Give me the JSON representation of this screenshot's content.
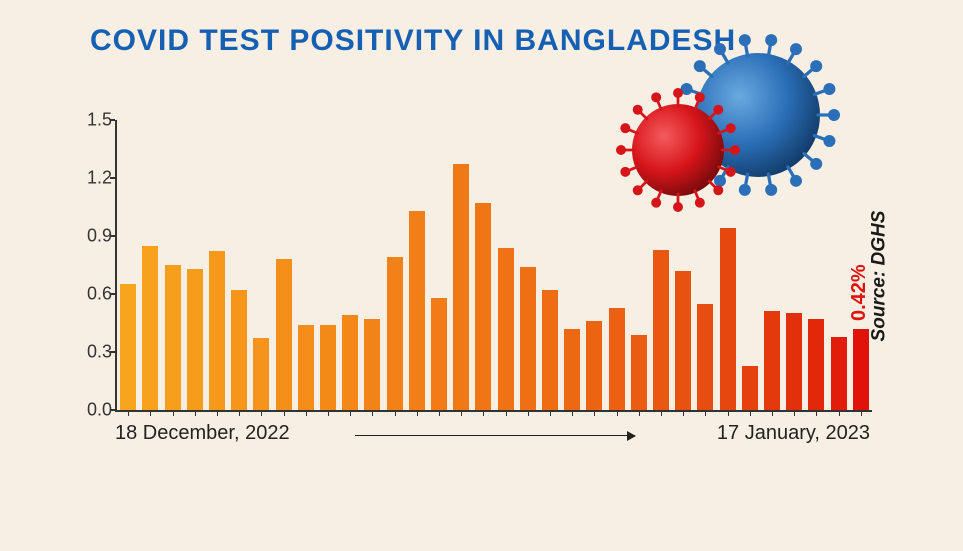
{
  "title": {
    "text": "COVID TEST POSITIVITY IN BANGLADESH",
    "color": "#1560b3",
    "fontsize": 30
  },
  "source": {
    "text": "Source: DGHS",
    "fontsize": 19
  },
  "chart": {
    "type": "bar",
    "ylim": [
      0.0,
      1.5
    ],
    "yticks": [
      0.0,
      0.3,
      0.6,
      0.9,
      1.2,
      1.5
    ],
    "ytick_labels": [
      "0.0",
      "0.3",
      "0.6",
      "0.9",
      "1.2",
      "1.5"
    ],
    "ytick_fontsize": 18,
    "values": [
      0.65,
      0.85,
      0.75,
      0.73,
      0.82,
      0.62,
      0.37,
      0.78,
      0.44,
      0.44,
      0.49,
      0.47,
      0.79,
      1.03,
      0.58,
      1.27,
      1.07,
      0.84,
      0.74,
      0.62,
      0.42,
      0.46,
      0.53,
      0.39,
      0.83,
      0.72,
      0.55,
      0.94,
      0.23,
      0.51,
      0.5,
      0.47,
      0.38,
      0.42
    ],
    "bar_colors": [
      "#f7a41e",
      "#f7a21d",
      "#f79f1c",
      "#f69c1b",
      "#f6991b",
      "#f5961a",
      "#f5931a",
      "#f49019",
      "#f48d19",
      "#f38a18",
      "#f38718",
      "#f28417",
      "#f28117",
      "#f17e16",
      "#f17b16",
      "#f07815",
      "#f07515",
      "#ef7214",
      "#ee6f14",
      "#ee6c13",
      "#ed6813",
      "#ec6412",
      "#eb6012",
      "#ea5c11",
      "#e95711",
      "#e85210",
      "#e74d10",
      "#e6470f",
      "#e5400e",
      "#e4380d",
      "#e3300c",
      "#e2270b",
      "#e11d0a",
      "#e0120a"
    ],
    "bar_width_ratio": 0.72,
    "callout": {
      "text": "0.42%",
      "color": "#e0120a",
      "fontsize": 20
    },
    "x_start_label": "18 December, 2022",
    "x_end_label": "17 January, 2023",
    "xlabel_fontsize": 20,
    "background_color": "#f7efe4"
  },
  "virus": {
    "blue": "#2b6fb8",
    "blue_hi": "#5a9ad6",
    "blue_lo": "#123d6b",
    "red": "#d6151a",
    "red_hi": "#ef4648",
    "red_lo": "#7a0a0d"
  }
}
